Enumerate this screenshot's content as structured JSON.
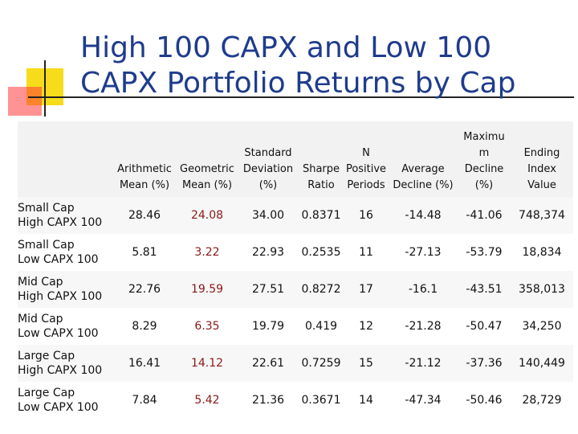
{
  "title": {
    "line1": "High 100 CAPX and Low 100",
    "line2": "CAPX Portfolio Returns by Cap"
  },
  "colors": {
    "title": "#1f3c8c",
    "geometric_mean": "#8a1818",
    "deco_yellow": "#f6dc1a",
    "deco_red": "#ff3b3b"
  },
  "table": {
    "headers": [
      [
        "",
        "",
        "Arithmetic",
        "Mean (%)"
      ],
      [
        "",
        "",
        "Geometric",
        "Mean (%)"
      ],
      [
        "",
        "Standard",
        "Deviation",
        "(%)"
      ],
      [
        "",
        "",
        "Sharpe",
        "Ratio"
      ],
      [
        "",
        "N",
        "Positive",
        "Periods"
      ],
      [
        "",
        "",
        "Average",
        "Decline (%)"
      ],
      [
        "Maximu",
        "m",
        "Decline",
        "(%)"
      ],
      [
        "",
        "Ending",
        "Index",
        "Value"
      ]
    ],
    "rows": [
      {
        "label": [
          "Small Cap",
          "High CAPX 100"
        ],
        "values": [
          "28.46",
          "24.08",
          "34.00",
          "0.8371",
          "16",
          "-14.48",
          "-41.06",
          "748,374"
        ]
      },
      {
        "label": [
          "Small Cap",
          "Low CAPX 100"
        ],
        "values": [
          "5.81",
          "3.22",
          "22.93",
          "0.2535",
          "11",
          "-27.13",
          "-53.79",
          "18,834"
        ]
      },
      {
        "label": [
          "Mid Cap",
          "High CAPX 100"
        ],
        "values": [
          "22.76",
          "19.59",
          "27.51",
          "0.8272",
          "17",
          "-16.1",
          "-43.51",
          "358,013"
        ]
      },
      {
        "label": [
          "Mid Cap",
          "Low CAPX 100"
        ],
        "values": [
          "8.29",
          "6.35",
          "19.79",
          "0.419",
          "12",
          "-21.28",
          "-50.47",
          "34,250"
        ]
      },
      {
        "label": [
          "Large Cap",
          "High CAPX 100"
        ],
        "values": [
          "16.41",
          "14.12",
          "22.61",
          "0.7259",
          "15",
          "-21.12",
          "-37.36",
          "140,449"
        ]
      },
      {
        "label": [
          "Large Cap",
          "Low CAPX 100"
        ],
        "values": [
          "7.84",
          "5.42",
          "21.36",
          "0.3671",
          "14",
          "-47.34",
          "-50.46",
          "28,729"
        ]
      }
    ]
  }
}
